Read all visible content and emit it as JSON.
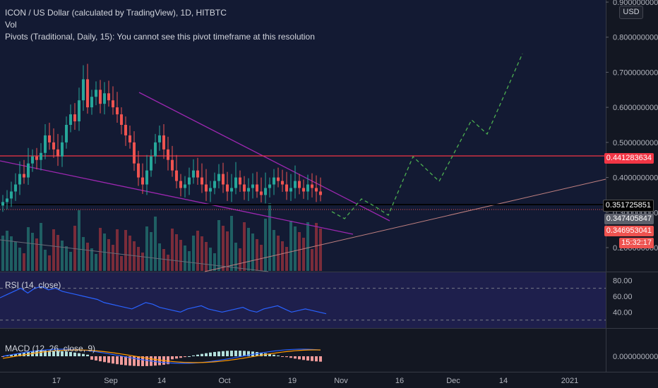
{
  "header": {
    "title": "ICON / US Dollar (calculated by TradingView), 1D, HITBTC",
    "vol_label": "Vol",
    "pivots_label": "Pivots (Traditional, Daily, 15): You cannot see this pivot timeframe at this resolution",
    "currency": "USD"
  },
  "price_axis": {
    "ticks": [
      "0.900000000",
      "0.800000000",
      "0.700000000",
      "0.600000000",
      "0.500000000",
      "0.400000000",
      "0.300000000",
      "0.200000000"
    ]
  },
  "price_labels": {
    "resistance": "0.441283634",
    "black_line": "0.351725851",
    "last_gray": "0.347405847",
    "last_red": "0.346953041",
    "countdown": "15:32:17"
  },
  "time_axis": {
    "ticks": [
      "17",
      "Sep",
      "14",
      "Oct",
      "19",
      "Nov",
      "16",
      "Dec",
      "14",
      "2021"
    ]
  },
  "rsi": {
    "label": "RSI (14, close)",
    "ticks": [
      "80.00",
      "60.00",
      "40.00"
    ]
  },
  "macd": {
    "label": "MACD (12, 26, close, 9)",
    "ticks": [
      "0.000000000"
    ]
  },
  "colors": {
    "bg": "#131722",
    "up": "#26a69a",
    "down": "#ef5350",
    "purple": "#9c27b0",
    "projection": "#4caf50",
    "resistance": "#f23645",
    "rsi": "#2962ff"
  },
  "chart_data": {
    "type": "candlestick",
    "symbol": "ICON / US Dollar",
    "interval": "1D",
    "exchange": "HITBTC",
    "ylim": [
      0.2,
      0.9
    ],
    "resistance_level": 0.441283634,
    "support_level": 0.351725851,
    "last_price": 0.346953041,
    "close_approx": [
      0.33,
      0.34,
      0.36,
      0.38,
      0.41,
      0.4,
      0.44,
      0.46,
      0.45,
      0.47,
      0.52,
      0.5,
      0.48,
      0.46,
      0.5,
      0.55,
      0.58,
      0.56,
      0.62,
      0.68,
      0.6,
      0.63,
      0.65,
      0.61,
      0.64,
      0.62,
      0.6,
      0.58,
      0.55,
      0.52,
      0.5,
      0.44,
      0.4,
      0.38,
      0.42,
      0.46,
      0.5,
      0.52,
      0.48,
      0.45,
      0.42,
      0.39,
      0.37,
      0.38,
      0.4,
      0.42,
      0.4,
      0.38,
      0.36,
      0.37,
      0.39,
      0.41,
      0.38,
      0.36,
      0.37,
      0.4,
      0.38,
      0.36,
      0.37,
      0.38,
      0.36,
      0.35,
      0.37,
      0.38,
      0.4,
      0.39,
      0.38,
      0.36,
      0.37,
      0.39,
      0.37,
      0.36,
      0.38,
      0.37,
      0.36,
      0.35
    ],
    "projection_points": [
      [
        0.355,
        0.34
      ],
      [
        0.372,
        0.36
      ],
      [
        0.36,
        0.44
      ],
      [
        0.39,
        0.525
      ],
      [
        0.49,
        0.71
      ]
    ],
    "rsi_values_approx": [
      58,
      62,
      66,
      70,
      64,
      70,
      72,
      68,
      70,
      66,
      64,
      62,
      60,
      58,
      56,
      52,
      50,
      48,
      46,
      44,
      48,
      52,
      50,
      46,
      44,
      42,
      40,
      44,
      46,
      48,
      44,
      42,
      40,
      42,
      44,
      46,
      42,
      40,
      44,
      46,
      48,
      44,
      40,
      42,
      44,
      42,
      40,
      38
    ],
    "rsi_levels": [
      70,
      30
    ]
  }
}
